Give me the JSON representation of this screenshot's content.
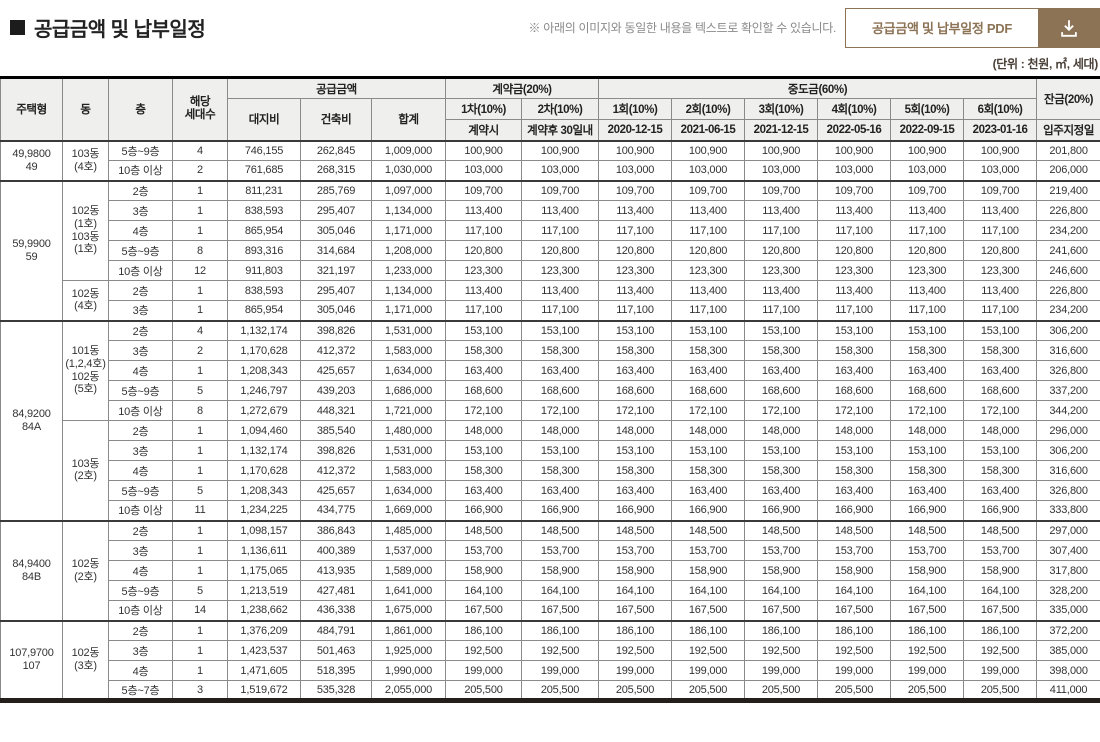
{
  "page": {
    "title": "공급금액 및 납부일정",
    "note": "※ 아래의 이미지와 동일한 내용을 텍스트로 확인할 수 있습니다.",
    "pdf_button_label": "공급금액 및 납부일정 PDF",
    "unit_note": "(단위 : 천원, ㎡, 세대)",
    "accent_color": "#8c7355"
  },
  "table": {
    "head": {
      "housing_type": "주택형",
      "dong": "동",
      "floor": "층",
      "units": "해당\n세대수",
      "supply_group": "공급금액",
      "land": "대지비",
      "build": "건축비",
      "total": "합계",
      "deposit_group": "계약금(20%)",
      "deposit_cols": [
        "1차(10%)",
        "2차(10%)"
      ],
      "deposit_subs": [
        "계약시",
        "계약후 30일내"
      ],
      "interim_group": "중도금(60%)",
      "interim_cols": [
        "1회(10%)",
        "2회(10%)",
        "3회(10%)",
        "4회(10%)",
        "5회(10%)",
        "6회(10%)"
      ],
      "interim_dates": [
        "2020-12-15",
        "2021-06-15",
        "2021-12-15",
        "2022-05-16",
        "2022-09-15",
        "2023-01-16"
      ],
      "balance_group": "잔금(20%)",
      "balance_sub": "입주지정일"
    },
    "groups": [
      {
        "type": "49,9800\n49",
        "dongs": [
          {
            "label": "103동\n(4호)",
            "rows": [
              {
                "floor": "5층~9층",
                "units": "4",
                "land": "746,155",
                "build": "262,845",
                "total": "1,009,000",
                "installment": "100,900",
                "balance": "201,800"
              },
              {
                "floor": "10층 이상",
                "units": "2",
                "land": "761,685",
                "build": "268,315",
                "total": "1,030,000",
                "installment": "103,000",
                "balance": "206,000"
              }
            ]
          }
        ]
      },
      {
        "type": "59,9900\n59",
        "dongs": [
          {
            "label": "102동\n(1호)\n103동\n(1호)",
            "rows": [
              {
                "floor": "2층",
                "units": "1",
                "land": "811,231",
                "build": "285,769",
                "total": "1,097,000",
                "installment": "109,700",
                "balance": "219,400"
              },
              {
                "floor": "3층",
                "units": "1",
                "land": "838,593",
                "build": "295,407",
                "total": "1,134,000",
                "installment": "113,400",
                "balance": "226,800"
              },
              {
                "floor": "4층",
                "units": "1",
                "land": "865,954",
                "build": "305,046",
                "total": "1,171,000",
                "installment": "117,100",
                "balance": "234,200"
              },
              {
                "floor": "5층~9층",
                "units": "8",
                "land": "893,316",
                "build": "314,684",
                "total": "1,208,000",
                "installment": "120,800",
                "balance": "241,600"
              },
              {
                "floor": "10층 이상",
                "units": "12",
                "land": "911,803",
                "build": "321,197",
                "total": "1,233,000",
                "installment": "123,300",
                "balance": "246,600"
              }
            ]
          },
          {
            "label": "102동\n(4호)",
            "rows": [
              {
                "floor": "2층",
                "units": "1",
                "land": "838,593",
                "build": "295,407",
                "total": "1,134,000",
                "installment": "113,400",
                "balance": "226,800"
              },
              {
                "floor": "3층",
                "units": "1",
                "land": "865,954",
                "build": "305,046",
                "total": "1,171,000",
                "installment": "117,100",
                "balance": "234,200"
              }
            ]
          }
        ]
      },
      {
        "type": "84,9200\n84A",
        "dongs": [
          {
            "label": "101동\n(1,2,4호)\n102동\n(5호)",
            "rows": [
              {
                "floor": "2층",
                "units": "4",
                "land": "1,132,174",
                "build": "398,826",
                "total": "1,531,000",
                "installment": "153,100",
                "balance": "306,200"
              },
              {
                "floor": "3층",
                "units": "2",
                "land": "1,170,628",
                "build": "412,372",
                "total": "1,583,000",
                "installment": "158,300",
                "balance": "316,600"
              },
              {
                "floor": "4층",
                "units": "1",
                "land": "1,208,343",
                "build": "425,657",
                "total": "1,634,000",
                "installment": "163,400",
                "balance": "326,800"
              },
              {
                "floor": "5층~9층",
                "units": "5",
                "land": "1,246,797",
                "build": "439,203",
                "total": "1,686,000",
                "installment": "168,600",
                "balance": "337,200"
              },
              {
                "floor": "10층 이상",
                "units": "8",
                "land": "1,272,679",
                "build": "448,321",
                "total": "1,721,000",
                "installment": "172,100",
                "balance": "344,200"
              }
            ]
          },
          {
            "label": "103동\n(2호)",
            "rows": [
              {
                "floor": "2층",
                "units": "1",
                "land": "1,094,460",
                "build": "385,540",
                "total": "1,480,000",
                "installment": "148,000",
                "balance": "296,000"
              },
              {
                "floor": "3층",
                "units": "1",
                "land": "1,132,174",
                "build": "398,826",
                "total": "1,531,000",
                "installment": "153,100",
                "balance": "306,200"
              },
              {
                "floor": "4층",
                "units": "1",
                "land": "1,170,628",
                "build": "412,372",
                "total": "1,583,000",
                "installment": "158,300",
                "balance": "316,600"
              },
              {
                "floor": "5층~9층",
                "units": "5",
                "land": "1,208,343",
                "build": "425,657",
                "total": "1,634,000",
                "installment": "163,400",
                "balance": "326,800"
              },
              {
                "floor": "10층 이상",
                "units": "11",
                "land": "1,234,225",
                "build": "434,775",
                "total": "1,669,000",
                "installment": "166,900",
                "balance": "333,800"
              }
            ]
          }
        ]
      },
      {
        "type": "84,9400\n84B",
        "dongs": [
          {
            "label": "102동\n(2호)",
            "rows": [
              {
                "floor": "2층",
                "units": "1",
                "land": "1,098,157",
                "build": "386,843",
                "total": "1,485,000",
                "installment": "148,500",
                "balance": "297,000"
              },
              {
                "floor": "3층",
                "units": "1",
                "land": "1,136,611",
                "build": "400,389",
                "total": "1,537,000",
                "installment": "153,700",
                "balance": "307,400"
              },
              {
                "floor": "4층",
                "units": "1",
                "land": "1,175,065",
                "build": "413,935",
                "total": "1,589,000",
                "installment": "158,900",
                "balance": "317,800"
              },
              {
                "floor": "5층~9층",
                "units": "5",
                "land": "1,213,519",
                "build": "427,481",
                "total": "1,641,000",
                "installment": "164,100",
                "balance": "328,200"
              },
              {
                "floor": "10층 이상",
                "units": "14",
                "land": "1,238,662",
                "build": "436,338",
                "total": "1,675,000",
                "installment": "167,500",
                "balance": "335,000"
              }
            ]
          }
        ]
      },
      {
        "type": "107,9700\n107",
        "dongs": [
          {
            "label": "102동\n(3호)",
            "rows": [
              {
                "floor": "2층",
                "units": "1",
                "land": "1,376,209",
                "build": "484,791",
                "total": "1,861,000",
                "installment": "186,100",
                "balance": "372,200"
              },
              {
                "floor": "3층",
                "units": "1",
                "land": "1,423,537",
                "build": "501,463",
                "total": "1,925,000",
                "installment": "192,500",
                "balance": "385,000"
              },
              {
                "floor": "4층",
                "units": "1",
                "land": "1,471,605",
                "build": "518,395",
                "total": "1,990,000",
                "installment": "199,000",
                "balance": "398,000"
              },
              {
                "floor": "5층~7층",
                "units": "3",
                "land": "1,519,672",
                "build": "535,328",
                "total": "2,055,000",
                "installment": "205,500",
                "balance": "411,000"
              }
            ]
          }
        ]
      }
    ]
  }
}
